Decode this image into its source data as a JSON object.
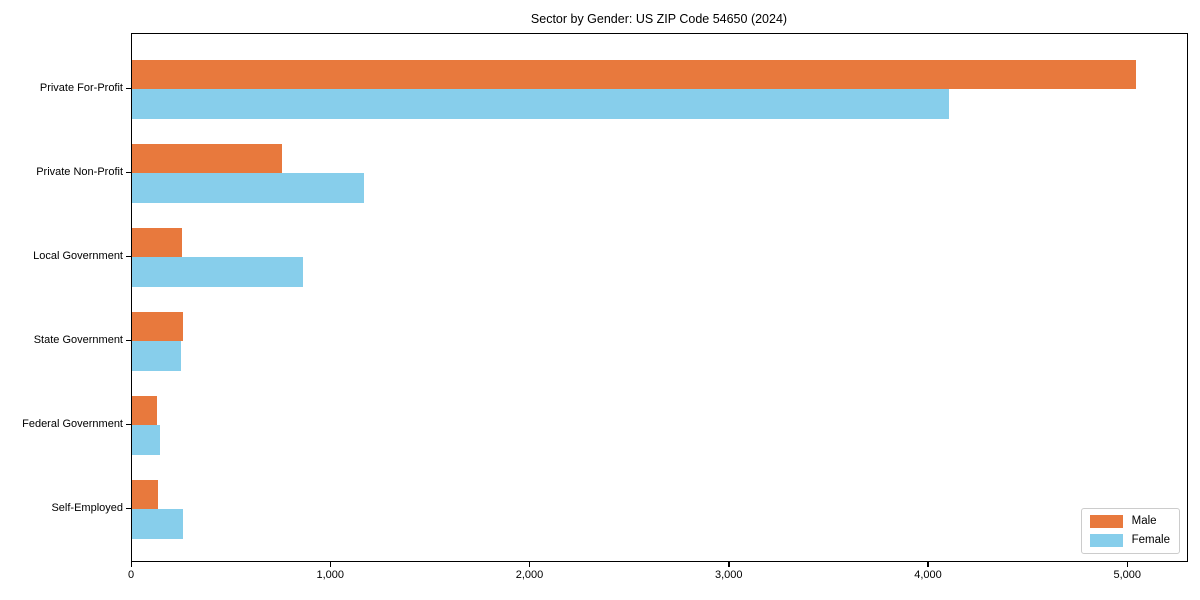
{
  "chart_data": {
    "type": "bar",
    "orientation": "horizontal",
    "title": "Sector by Gender: US ZIP Code 54650 (2024)",
    "categories": [
      "Private For-Profit",
      "Private Non-Profit",
      "Local Government",
      "State Government",
      "Federal Government",
      "Self-Employed"
    ],
    "series": [
      {
        "name": "Male",
        "color": "#e8793d",
        "values": [
          5040,
          755,
          250,
          255,
          125,
          130
        ]
      },
      {
        "name": "Female",
        "color": "#87ceeb",
        "values": [
          4100,
          1165,
          860,
          245,
          140,
          255
        ]
      }
    ],
    "xlabel": "",
    "ylabel": "",
    "xlim": [
      0,
      5300
    ],
    "xticks": {
      "values": [
        0,
        1000,
        2000,
        3000,
        4000,
        5000
      ],
      "labels": [
        "0",
        "1,000",
        "2,000",
        "3,000",
        "4,000",
        "5,000"
      ]
    },
    "grid": false,
    "legend": {
      "position": "lower right",
      "entries": [
        "Male",
        "Female"
      ]
    },
    "axis_color": "#000000",
    "background_color": "#ffffff"
  }
}
